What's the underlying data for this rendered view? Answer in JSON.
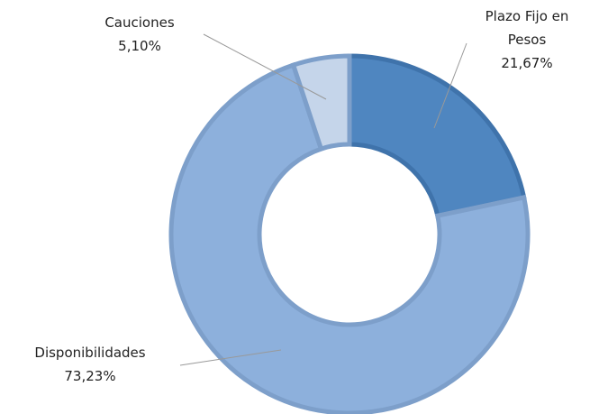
{
  "chart_data": {
    "type": "donut",
    "categories": [
      "Plazo Fijo en Pesos",
      "Disponibilidades",
      "Cauciones"
    ],
    "values": [
      21.67,
      73.23,
      5.1
    ],
    "value_labels": [
      "21,67%",
      "73,23%",
      "5,10%"
    ],
    "colors": [
      "#4f86c0",
      "#8db0dc",
      "#c5d5ea"
    ]
  }
}
